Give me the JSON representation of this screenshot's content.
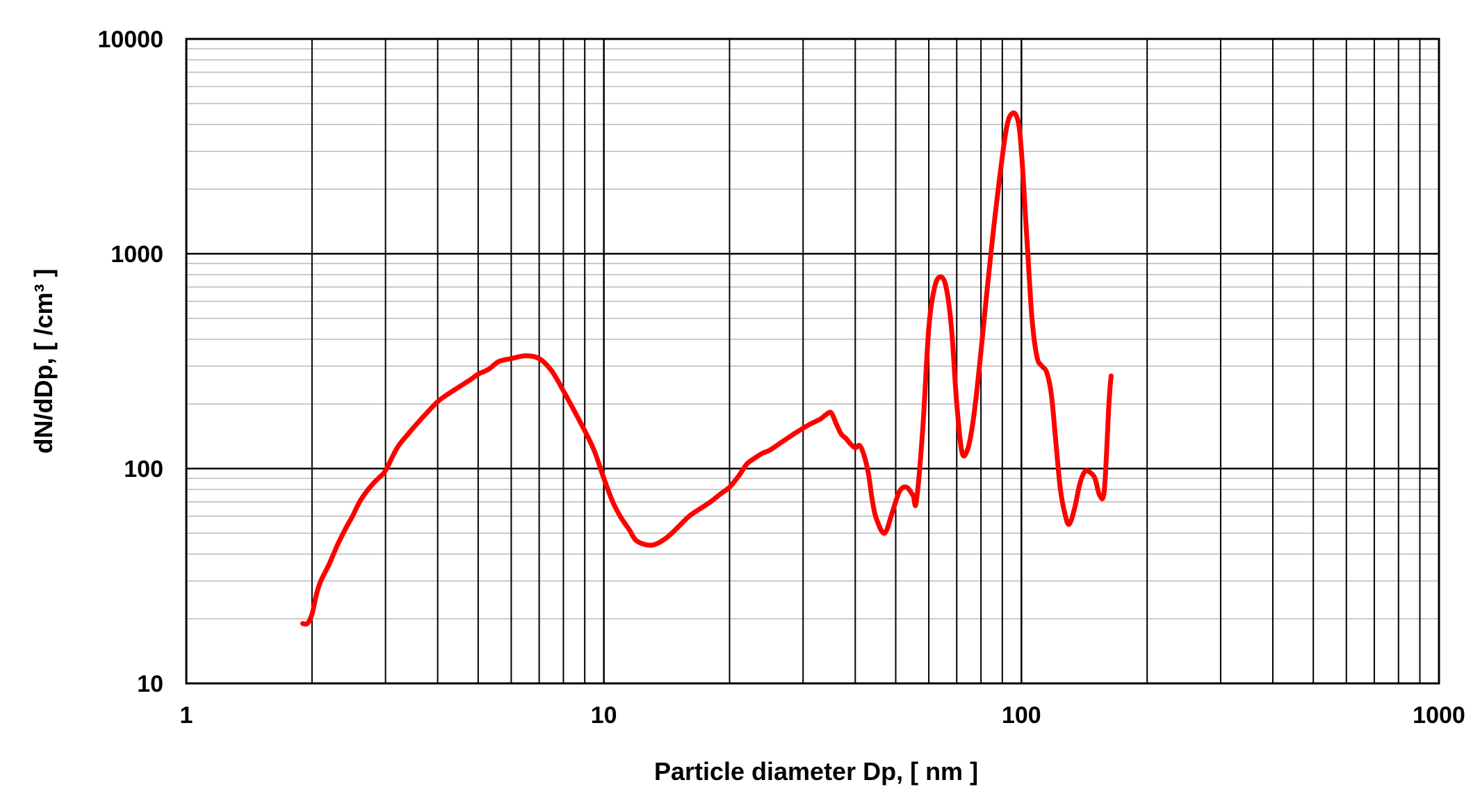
{
  "chart_data": {
    "type": "line",
    "title": "",
    "xlabel": "Particle diameter Dp, [ nm ]",
    "ylabel": "dN/dDp, [  /cm³ ]",
    "xscale": "log",
    "yscale": "log",
    "xlim": [
      1,
      1000
    ],
    "ylim": [
      10,
      10000
    ],
    "x_ticks": [
      "1",
      "10",
      "100",
      "1000"
    ],
    "y_ticks": [
      "10",
      "100",
      "1000",
      "10000"
    ],
    "grid": true,
    "legend": "none",
    "series": [
      {
        "color": "#ff0000",
        "x": [
          1.9,
          1.95,
          2.0,
          2.05,
          2.1,
          2.2,
          2.3,
          2.4,
          2.5,
          2.6,
          2.7,
          2.8,
          2.9,
          3.0,
          3.2,
          3.4,
          3.6,
          3.8,
          4.0,
          4.2,
          4.5,
          4.8,
          5.0,
          5.3,
          5.6,
          6.0,
          6.5,
          7.0,
          7.5,
          8.0,
          8.5,
          9.0,
          9.5,
          10.0,
          10.5,
          11.0,
          11.5,
          12.0,
          13.0,
          14.0,
          15.0,
          16.0,
          17.0,
          18.0,
          19.0,
          20.0,
          21.0,
          22.0,
          23.0,
          24.0,
          25.0,
          27.0,
          29.0,
          31.0,
          33.0,
          34.0,
          35.0,
          36.0,
          37.0,
          38.0,
          39.0,
          40.0,
          41.0,
          42.0,
          43.0,
          44.0,
          45.0,
          47.0,
          49.0,
          51.0,
          53.0,
          55.0,
          56.0,
          58.0,
          60.0,
          62.0,
          64.0,
          66.0,
          68.0,
          70.0,
          72.0,
          74.0,
          76.0,
          78.0,
          80.0,
          84.0,
          88.0,
          92.0,
          95.0,
          98.0,
          100.0,
          103.0,
          106.0,
          109.0,
          112.0,
          115.0,
          118.0,
          121.0,
          124.0,
          127.0,
          130.0,
          134.0,
          138.0,
          142.0,
          146.0,
          150.0,
          154.0,
          158.0,
          162.0,
          164.0
        ],
        "y": [
          19,
          19,
          21,
          26,
          30,
          36,
          44,
          52,
          60,
          70,
          78,
          85,
          91,
          98,
          125,
          145,
          165,
          185,
          205,
          220,
          240,
          260,
          275,
          290,
          315,
          325,
          335,
          325,
          285,
          230,
          185,
          150,
          120,
          90,
          70,
          59,
          52,
          46,
          44,
          47,
          53,
          60,
          65,
          70,
          76,
          82,
          92,
          105,
          112,
          118,
          122,
          135,
          148,
          160,
          170,
          178,
          182,
          162,
          145,
          138,
          130,
          125,
          128,
          115,
          95,
          70,
          58,
          50,
          62,
          78,
          82,
          75,
          70,
          150,
          450,
          700,
          780,
          700,
          450,
          200,
          120,
          120,
          150,
          220,
          350,
          900,
          2000,
          3800,
          4500,
          4200,
          3000,
          1200,
          500,
          330,
          300,
          280,
          220,
          130,
          80,
          62,
          55,
          65,
          85,
          97,
          96,
          90,
          75,
          80,
          200,
          270
        ]
      }
    ]
  }
}
